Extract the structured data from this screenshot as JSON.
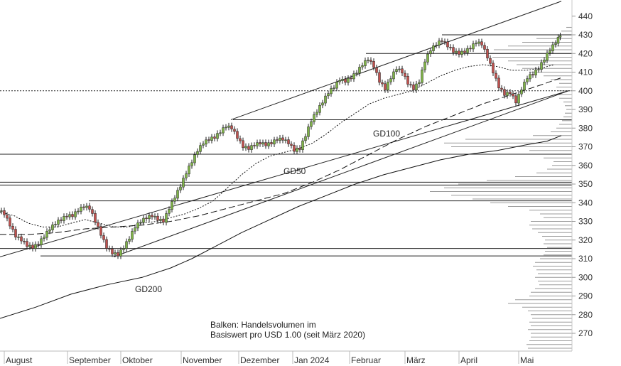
{
  "chart_data": {
    "type": "candlestick",
    "ylim": [
      260,
      448
    ],
    "y_ticks": [
      "270",
      "280",
      "290",
      "300",
      "310",
      "320",
      "330",
      "340",
      "350",
      "360",
      "370",
      "380",
      "390",
      "400",
      "410",
      "420",
      "430",
      "440"
    ],
    "x_labels": [
      "August",
      "September",
      "Oktober",
      "November",
      "Dezember",
      "Jan 2024",
      "Februar",
      "März",
      "April",
      "Mai"
    ],
    "annotations": {
      "gd200": "GD200",
      "gd100": "GD100",
      "gd50": "GD50",
      "note_line1": "Balken: Handelsvolumen im",
      "note_line2": "Basiswert pro USD 1.00 (seit März 2020)"
    },
    "horizontal_levels": [
      430,
      420,
      384.5,
      366,
      351,
      349.5,
      341,
      315.5,
      311.5,
      400
    ],
    "price_path": [
      [
        0,
        336
      ],
      [
        8,
        334
      ],
      [
        16,
        328
      ],
      [
        24,
        322
      ],
      [
        32,
        320
      ],
      [
        40,
        317
      ],
      [
        48,
        316
      ],
      [
        56,
        318
      ],
      [
        64,
        322
      ],
      [
        72,
        326
      ],
      [
        80,
        329
      ],
      [
        88,
        331
      ],
      [
        96,
        333
      ],
      [
        104,
        333
      ],
      [
        112,
        336
      ],
      [
        120,
        338
      ],
      [
        128,
        337
      ],
      [
        136,
        330
      ],
      [
        144,
        323
      ],
      [
        152,
        316
      ],
      [
        160,
        313
      ],
      [
        168,
        312
      ],
      [
        176,
        316
      ],
      [
        184,
        321
      ],
      [
        192,
        327
      ],
      [
        200,
        330
      ],
      [
        208,
        332
      ],
      [
        216,
        333
      ],
      [
        224,
        331
      ],
      [
        232,
        330
      ],
      [
        240,
        337
      ],
      [
        248,
        343
      ],
      [
        256,
        349
      ],
      [
        264,
        356
      ],
      [
        272,
        362
      ],
      [
        280,
        368
      ],
      [
        288,
        372
      ],
      [
        296,
        374
      ],
      [
        304,
        375
      ],
      [
        312,
        378
      ],
      [
        320,
        381
      ],
      [
        328,
        380
      ],
      [
        336,
        375
      ],
      [
        344,
        370
      ],
      [
        352,
        369
      ],
      [
        360,
        371
      ],
      [
        368,
        372
      ],
      [
        376,
        371
      ],
      [
        384,
        372
      ],
      [
        392,
        374
      ],
      [
        400,
        374
      ],
      [
        408,
        372
      ],
      [
        416,
        368
      ],
      [
        424,
        369
      ],
      [
        432,
        376
      ],
      [
        440,
        384
      ],
      [
        448,
        389
      ],
      [
        456,
        394
      ],
      [
        464,
        399
      ],
      [
        472,
        402
      ],
      [
        480,
        406
      ],
      [
        488,
        405
      ],
      [
        496,
        407
      ],
      [
        504,
        410
      ],
      [
        512,
        414
      ],
      [
        520,
        417
      ],
      [
        528,
        413
      ],
      [
        536,
        405
      ],
      [
        544,
        401
      ],
      [
        552,
        407
      ],
      [
        560,
        412
      ],
      [
        568,
        410
      ],
      [
        576,
        404
      ],
      [
        584,
        401
      ],
      [
        592,
        405
      ],
      [
        600,
        416
      ],
      [
        608,
        422
      ],
      [
        616,
        425
      ],
      [
        624,
        427
      ],
      [
        632,
        424
      ],
      [
        640,
        421
      ],
      [
        648,
        420
      ],
      [
        656,
        421
      ],
      [
        664,
        423
      ],
      [
        672,
        426
      ],
      [
        680,
        425
      ],
      [
        688,
        418
      ],
      [
        696,
        410
      ],
      [
        704,
        402
      ],
      [
        712,
        398
      ],
      [
        720,
        399
      ],
      [
        728,
        394
      ],
      [
        736,
        401
      ],
      [
        744,
        407
      ],
      [
        752,
        409
      ],
      [
        760,
        412
      ],
      [
        768,
        417
      ],
      [
        776,
        422
      ],
      [
        784,
        426
      ],
      [
        790,
        430
      ]
    ],
    "gd50_path": [
      [
        0,
        335
      ],
      [
        20,
        333
      ],
      [
        40,
        329
      ],
      [
        60,
        327
      ],
      [
        80,
        327
      ],
      [
        100,
        329
      ],
      [
        120,
        331
      ],
      [
        140,
        329
      ],
      [
        160,
        327
      ],
      [
        180,
        327
      ],
      [
        200,
        329
      ],
      [
        220,
        330
      ],
      [
        240,
        332
      ],
      [
        260,
        334
      ],
      [
        280,
        337
      ],
      [
        300,
        341
      ],
      [
        320,
        348
      ],
      [
        340,
        355
      ],
      [
        360,
        361
      ],
      [
        380,
        365
      ],
      [
        400,
        367
      ],
      [
        420,
        369
      ],
      [
        440,
        372
      ],
      [
        460,
        377
      ],
      [
        480,
        383
      ],
      [
        500,
        388
      ],
      [
        520,
        393
      ],
      [
        540,
        396
      ],
      [
        560,
        398
      ],
      [
        580,
        400
      ],
      [
        600,
        404
      ],
      [
        620,
        408
      ],
      [
        640,
        411
      ],
      [
        660,
        413
      ],
      [
        680,
        414
      ],
      [
        700,
        413
      ],
      [
        720,
        411
      ],
      [
        740,
        411
      ],
      [
        760,
        412
      ],
      [
        780,
        414
      ]
    ],
    "gd100_path": [
      [
        0,
        323
      ],
      [
        40,
        323
      ],
      [
        80,
        324
      ],
      [
        120,
        326
      ],
      [
        160,
        327
      ],
      [
        200,
        328
      ],
      [
        240,
        330
      ],
      [
        280,
        333
      ],
      [
        320,
        337
      ],
      [
        360,
        341
      ],
      [
        400,
        345
      ],
      [
        440,
        351
      ],
      [
        480,
        358
      ],
      [
        520,
        366
      ],
      [
        560,
        374
      ],
      [
        600,
        381
      ],
      [
        640,
        387
      ],
      [
        680,
        393
      ],
      [
        720,
        398
      ],
      [
        760,
        403
      ],
      [
        790,
        407
      ]
    ],
    "gd200_path": [
      [
        0,
        278
      ],
      [
        50,
        284
      ],
      [
        100,
        291
      ],
      [
        150,
        296
      ],
      [
        200,
        300
      ],
      [
        240,
        305
      ],
      [
        270,
        310
      ],
      [
        300,
        316
      ],
      [
        340,
        324
      ],
      [
        380,
        331
      ],
      [
        420,
        338
      ],
      [
        460,
        344
      ],
      [
        500,
        350
      ],
      [
        540,
        355
      ],
      [
        580,
        359
      ],
      [
        620,
        363
      ],
      [
        660,
        366
      ],
      [
        700,
        368
      ],
      [
        740,
        371
      ],
      [
        770,
        373
      ],
      [
        790,
        376
      ]
    ],
    "trend_lines": [
      [
        [
          0,
          311
        ],
        [
          800,
          400
        ]
      ],
      [
        [
          160,
          311
        ],
        [
          800,
          400
        ]
      ],
      [
        [
          325,
          384.5
        ],
        [
          790,
          448
        ]
      ]
    ],
    "volume_profile": [
      [
        262,
        62
      ],
      [
        264,
        64
      ],
      [
        266,
        60
      ],
      [
        268,
        58
      ],
      [
        270,
        58
      ],
      [
        272,
        62
      ],
      [
        274,
        58
      ],
      [
        276,
        60
      ],
      [
        278,
        56
      ],
      [
        280,
        58
      ],
      [
        282,
        62
      ],
      [
        284,
        70
      ],
      [
        286,
        90
      ],
      [
        288,
        80
      ],
      [
        290,
        60
      ],
      [
        292,
        58
      ],
      [
        294,
        52
      ],
      [
        296,
        46
      ],
      [
        298,
        48
      ],
      [
        300,
        52
      ],
      [
        302,
        48
      ],
      [
        304,
        50
      ],
      [
        306,
        55
      ],
      [
        308,
        52
      ],
      [
        310,
        45
      ],
      [
        312,
        40
      ],
      [
        314,
        38
      ],
      [
        316,
        35
      ],
      [
        318,
        40
      ],
      [
        320,
        38
      ],
      [
        322,
        42
      ],
      [
        324,
        48
      ],
      [
        326,
        56
      ],
      [
        328,
        60
      ],
      [
        330,
        58
      ],
      [
        332,
        40
      ],
      [
        334,
        45
      ],
      [
        336,
        60
      ],
      [
        338,
        90
      ],
      [
        340,
        115
      ],
      [
        342,
        140
      ],
      [
        344,
        170
      ],
      [
        346,
        200
      ],
      [
        348,
        180
      ],
      [
        350,
        160
      ],
      [
        352,
        120
      ],
      [
        354,
        80
      ],
      [
        356,
        50
      ],
      [
        358,
        35
      ],
      [
        360,
        28
      ],
      [
        362,
        26
      ],
      [
        364,
        40
      ],
      [
        366,
        42
      ],
      [
        368,
        60
      ],
      [
        370,
        170
      ],
      [
        372,
        180
      ],
      [
        374,
        150
      ],
      [
        376,
        55
      ],
      [
        378,
        30
      ],
      [
        380,
        22
      ],
      [
        382,
        18
      ],
      [
        384,
        14
      ],
      [
        386,
        12
      ],
      [
        388,
        10
      ],
      [
        390,
        8
      ],
      [
        392,
        10
      ],
      [
        394,
        12
      ],
      [
        396,
        18
      ],
      [
        398,
        22
      ],
      [
        400,
        20
      ],
      [
        402,
        22
      ],
      [
        404,
        18
      ],
      [
        406,
        30
      ],
      [
        408,
        40
      ],
      [
        410,
        60
      ],
      [
        412,
        70
      ],
      [
        414,
        78
      ],
      [
        416,
        90
      ],
      [
        418,
        112
      ],
      [
        420,
        120
      ],
      [
        422,
        110
      ],
      [
        424,
        90
      ],
      [
        426,
        70
      ],
      [
        428,
        50
      ],
      [
        430,
        30
      ],
      [
        432,
        15
      ],
      [
        434,
        8
      ]
    ]
  }
}
